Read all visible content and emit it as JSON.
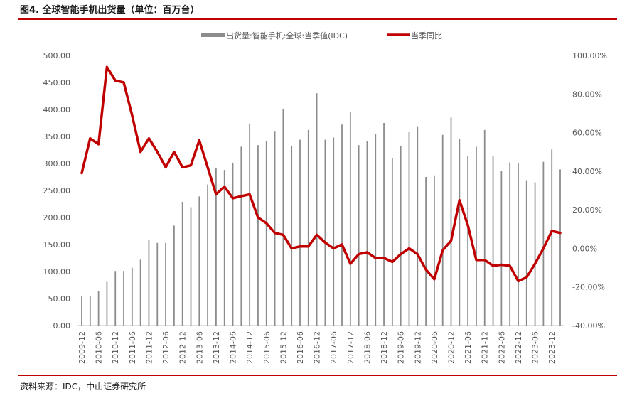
{
  "figure": {
    "title": "图4.  全球智能手机出货量（单位：百万台）",
    "source": "资料来源：IDC，中山证券研究所"
  },
  "colors": {
    "bar": "#8c8c8c",
    "line": "#c00000",
    "rule": "#c00000",
    "tick_text": "#555555"
  },
  "chart_data": {
    "type": "bar+line",
    "title": "",
    "legend_position": "top",
    "grid": false,
    "xlabel": "",
    "ylabel": "",
    "y_left_ticks": [
      "0.00",
      "50.00",
      "100.00",
      "150.00",
      "200.00",
      "250.00",
      "300.00",
      "350.00",
      "400.00",
      "450.00",
      "500.00"
    ],
    "y_right_ticks": [
      "-40.00%",
      "-20.00%",
      "0.00%",
      "20.00%",
      "40.00%",
      "60.00%",
      "80.00%",
      "100.00%"
    ],
    "y_left_range": [
      0,
      500
    ],
    "y_right_range": [
      -40,
      100
    ],
    "x_tick_labels": [
      "2009-12",
      "2010-06",
      "2010-12",
      "2011-06",
      "2011-12",
      "2012-06",
      "2012-12",
      "2013-06",
      "2013-12",
      "2014-06",
      "2014-12",
      "2015-06",
      "2015-12",
      "2016-06",
      "2016-12",
      "2017-06",
      "2017-12",
      "2018-06",
      "2018-12",
      "2019-06",
      "2019-12",
      "2020-06",
      "2020-12",
      "2021-06",
      "2021-12",
      "2022-06",
      "2022-12",
      "2023-06",
      "2023-12"
    ],
    "categories": [
      "2009-12",
      "2010-03",
      "2010-06",
      "2010-09",
      "2010-12",
      "2011-03",
      "2011-06",
      "2011-09",
      "2011-12",
      "2012-03",
      "2012-06",
      "2012-09",
      "2012-12",
      "2013-03",
      "2013-06",
      "2013-09",
      "2013-12",
      "2014-03",
      "2014-06",
      "2014-09",
      "2014-12",
      "2015-03",
      "2015-06",
      "2015-09",
      "2015-12",
      "2016-03",
      "2016-06",
      "2016-09",
      "2016-12",
      "2017-03",
      "2017-06",
      "2017-09",
      "2017-12",
      "2018-03",
      "2018-06",
      "2018-09",
      "2018-12",
      "2019-03",
      "2019-06",
      "2019-09",
      "2019-12",
      "2020-03",
      "2020-06",
      "2020-09",
      "2020-12",
      "2021-03",
      "2021-06",
      "2021-09",
      "2021-12",
      "2022-03",
      "2022-06",
      "2022-09",
      "2022-12",
      "2023-03",
      "2023-06",
      "2023-09",
      "2023-12",
      "2024-03"
    ],
    "series": [
      {
        "name": "出货量:智能手机:全球:当季值(IDC)",
        "type": "bar",
        "axis": "left",
        "values": [
          54,
          54,
          64,
          81,
          101,
          101,
          107,
          122,
          159,
          153,
          153,
          185,
          229,
          219,
          239,
          261,
          292,
          288,
          301,
          331,
          374,
          334,
          342,
          359,
          400,
          333,
          344,
          362,
          430,
          344,
          348,
          372,
          395,
          334,
          342,
          355,
          375,
          310,
          333,
          358,
          369,
          275,
          278,
          353,
          385,
          345,
          313,
          331,
          362,
          314,
          286,
          302,
          300,
          269,
          265,
          303,
          326,
          289
        ]
      },
      {
        "name": "当季同比",
        "type": "line",
        "axis": "right",
        "values": [
          39,
          57,
          54,
          94,
          87,
          86,
          69,
          50,
          57,
          50,
          42,
          50,
          42,
          43,
          56,
          42,
          28,
          32,
          26,
          27,
          28,
          16,
          13,
          8,
          7,
          0,
          1,
          1,
          7,
          3,
          0,
          2,
          -8,
          -3,
          -2,
          -5,
          -5,
          -7,
          -3,
          0,
          -3,
          -11,
          -16,
          -1,
          4,
          25,
          12,
          -6,
          -6,
          -9,
          -8.5,
          -9,
          -17,
          -15,
          -8,
          0,
          9,
          8
        ]
      }
    ]
  }
}
